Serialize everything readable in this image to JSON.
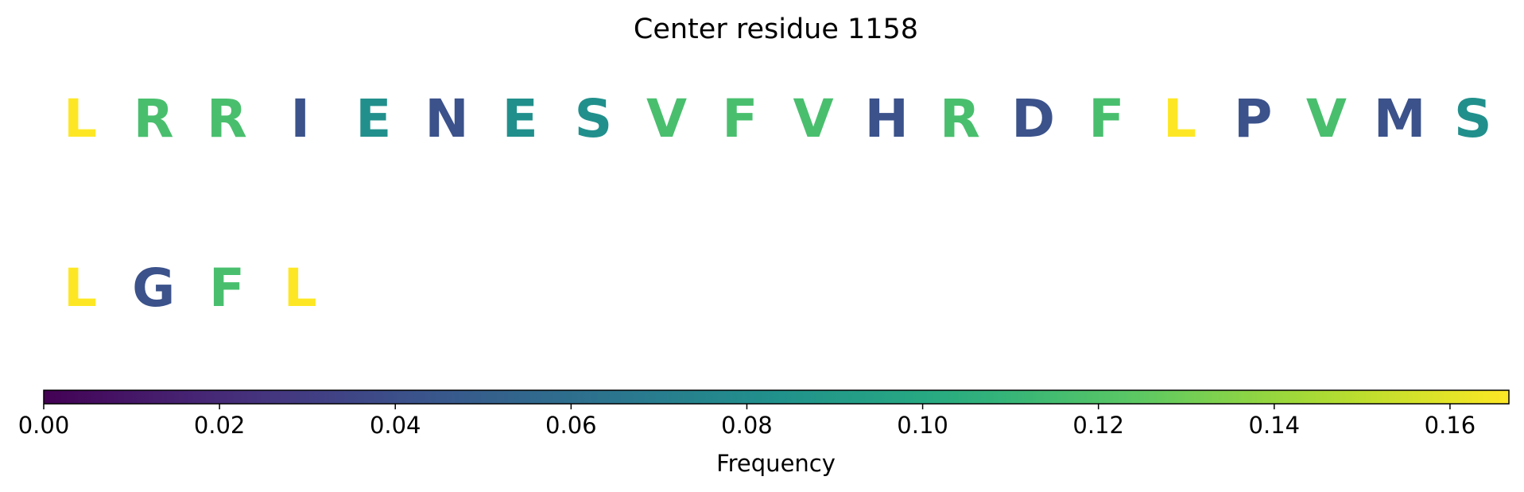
{
  "chart_data": {
    "type": "other",
    "title": "Center residue 1158",
    "residues": [
      {
        "letter": "L",
        "frequency": 0.167
      },
      {
        "letter": "R",
        "frequency": 0.117
      },
      {
        "letter": "R",
        "frequency": 0.117
      },
      {
        "letter": "I",
        "frequency": 0.042
      },
      {
        "letter": "E",
        "frequency": 0.083
      },
      {
        "letter": "N",
        "frequency": 0.042
      },
      {
        "letter": "E",
        "frequency": 0.083
      },
      {
        "letter": "S",
        "frequency": 0.083
      },
      {
        "letter": "V",
        "frequency": 0.117
      },
      {
        "letter": "F",
        "frequency": 0.117
      },
      {
        "letter": "V",
        "frequency": 0.117
      },
      {
        "letter": "H",
        "frequency": 0.042
      },
      {
        "letter": "R",
        "frequency": 0.117
      },
      {
        "letter": "D",
        "frequency": 0.042
      },
      {
        "letter": "F",
        "frequency": 0.117
      },
      {
        "letter": "L",
        "frequency": 0.167
      },
      {
        "letter": "P",
        "frequency": 0.042
      },
      {
        "letter": "V",
        "frequency": 0.117
      },
      {
        "letter": "M",
        "frequency": 0.042
      },
      {
        "letter": "S",
        "frequency": 0.083
      },
      {
        "letter": "L",
        "frequency": 0.167
      },
      {
        "letter": "G",
        "frequency": 0.042
      },
      {
        "letter": "F",
        "frequency": 0.117
      },
      {
        "letter": "L",
        "frequency": 0.167
      }
    ],
    "colorbar": {
      "label": "Frequency",
      "colormap": "viridis",
      "range": [
        0,
        0.1667
      ],
      "ticks": [
        0.0,
        0.02,
        0.04,
        0.06,
        0.08,
        0.1,
        0.12,
        0.14,
        0.16
      ],
      "tick_labels": [
        "0.00",
        "0.02",
        "0.04",
        "0.06",
        "0.08",
        "0.10",
        "0.12",
        "0.14",
        "0.16"
      ]
    }
  }
}
